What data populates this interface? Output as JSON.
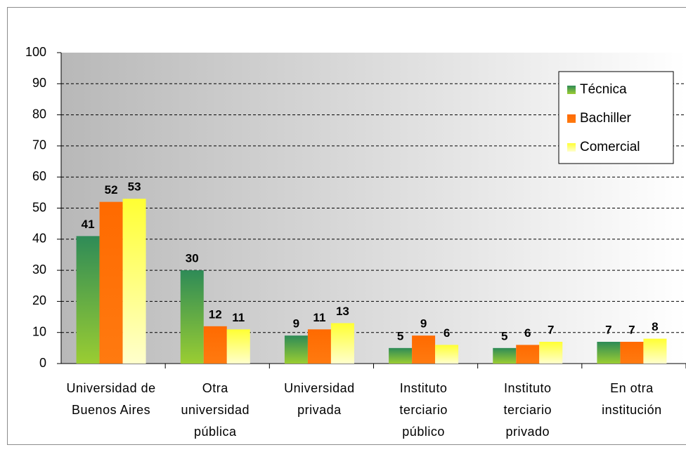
{
  "chart_data": {
    "type": "bar",
    "categories": [
      "Universidad de Buenos Aires",
      "Otra universidad pública",
      "Universidad privada",
      "Instituto terciario público",
      "Instituto terciario privado",
      "En otra institución"
    ],
    "series": [
      {
        "name": "Técnica",
        "color": "#3a9a5a",
        "values": [
          41,
          30,
          9,
          5,
          5,
          7
        ]
      },
      {
        "name": "Bachiller",
        "color": "#ff6a00",
        "values": [
          52,
          12,
          11,
          9,
          6,
          7
        ]
      },
      {
        "name": "Comercial",
        "color": "#ffff33",
        "values": [
          53,
          11,
          13,
          6,
          7,
          8
        ]
      }
    ],
    "ylim": [
      0,
      100
    ],
    "yticks": [
      0,
      10,
      20,
      30,
      40,
      50,
      60,
      70,
      80,
      90,
      100
    ],
    "grid": true,
    "legend": "upper right"
  }
}
